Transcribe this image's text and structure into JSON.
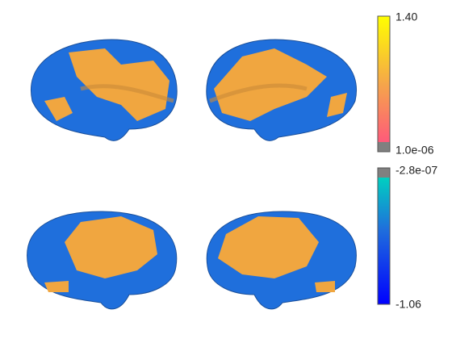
{
  "colorbars": [
    {
      "max_label": "1.40",
      "min_label": "1.0e-06"
    },
    {
      "max_label": "-2.8e-07",
      "min_label": "-1.06"
    }
  ]
}
